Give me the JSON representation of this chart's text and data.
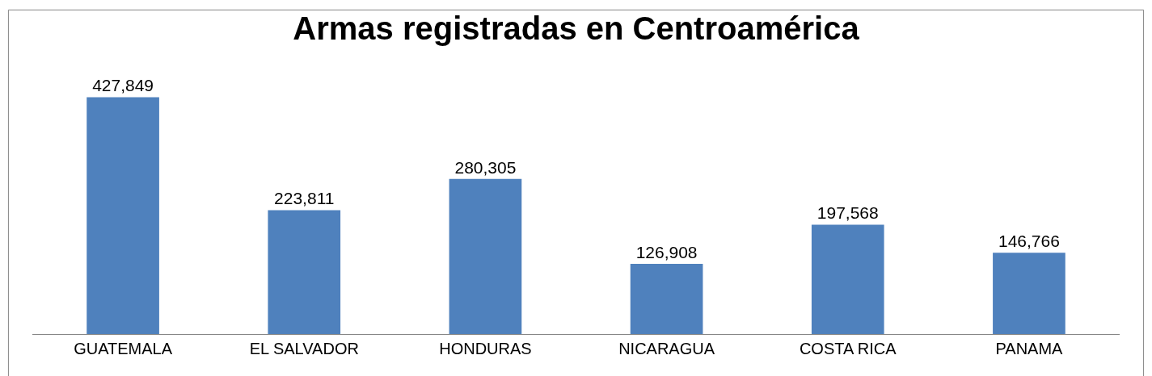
{
  "chart_data": {
    "type": "bar",
    "title": "Armas registradas en Centroamérica",
    "categories": [
      "GUATEMALA",
      "EL SALVADOR",
      "HONDURAS",
      "NICARAGUA",
      "COSTA RICA",
      "PANAMA"
    ],
    "values": [
      427849,
      223811,
      280305,
      126908,
      197568,
      146766
    ],
    "value_labels": [
      "427,849",
      "223,811",
      "280,305",
      "126,908",
      "197,568",
      "146,766"
    ],
    "color": "#4f81bd"
  }
}
